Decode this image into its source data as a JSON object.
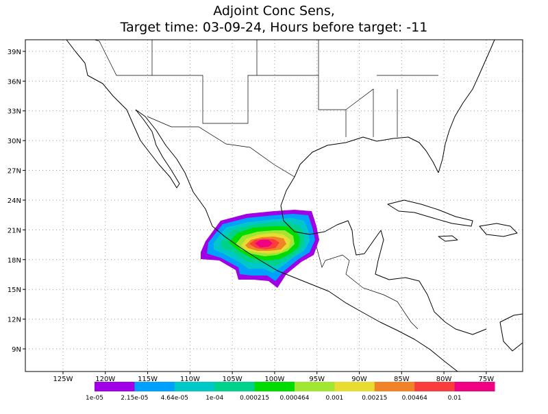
{
  "title": [
    "Adjoint Conc Sens,",
    "Target time: 03-09-24, Hours before target: -11"
  ],
  "map": {
    "lonlim": [
      -129.45,
      -70.7
    ],
    "latlim": [
      6.72,
      40.17
    ],
    "lon_ticks": [
      {
        "value": -125,
        "label": "125W"
      },
      {
        "value": -120,
        "label": "120W"
      },
      {
        "value": -115,
        "label": "115W"
      },
      {
        "value": -110,
        "label": "110W"
      },
      {
        "value": -105,
        "label": "105W"
      },
      {
        "value": -100,
        "label": "100W"
      },
      {
        "value": -95,
        "label": "95W"
      },
      {
        "value": -90,
        "label": "90W"
      },
      {
        "value": -85,
        "label": "85W"
      },
      {
        "value": -80,
        "label": "80W"
      },
      {
        "value": -75,
        "label": "75W"
      }
    ],
    "lat_ticks": [
      {
        "value": 9,
        "label": "9N"
      },
      {
        "value": 12,
        "label": "12N"
      },
      {
        "value": 15,
        "label": "15N"
      },
      {
        "value": 18,
        "label": "18N"
      },
      {
        "value": 21,
        "label": "21N"
      },
      {
        "value": 24,
        "label": "24N"
      },
      {
        "value": 27,
        "label": "27N"
      },
      {
        "value": 30,
        "label": "30N"
      },
      {
        "value": 33,
        "label": "33N"
      },
      {
        "value": 36,
        "label": "36N"
      },
      {
        "value": 39,
        "label": "39N"
      }
    ],
    "grid": true
  },
  "colorbar": {
    "colors": [
      "#a000e6",
      "#00a0ff",
      "#00c8c8",
      "#00d28c",
      "#00dc00",
      "#a0e632",
      "#e6dc32",
      "#f08228",
      "#fa3c3c",
      "#f00082"
    ],
    "levels": [
      {
        "value": 1e-05,
        "label": "1e-05"
      },
      {
        "value": 2.15e-05,
        "label": "2.15e-05"
      },
      {
        "value": 4.64e-05,
        "label": "4.64e-05"
      },
      {
        "value": 0.0001,
        "label": "1e-04"
      },
      {
        "value": 0.000215,
        "label": "0.000215"
      },
      {
        "value": 0.000464,
        "label": "0.000464"
      },
      {
        "value": 0.001,
        "label": "0.001"
      },
      {
        "value": 0.00215,
        "label": "0.00215"
      },
      {
        "value": 0.00464,
        "label": "0.00464"
      },
      {
        "value": 0.01,
        "label": "0.01"
      }
    ]
  }
}
